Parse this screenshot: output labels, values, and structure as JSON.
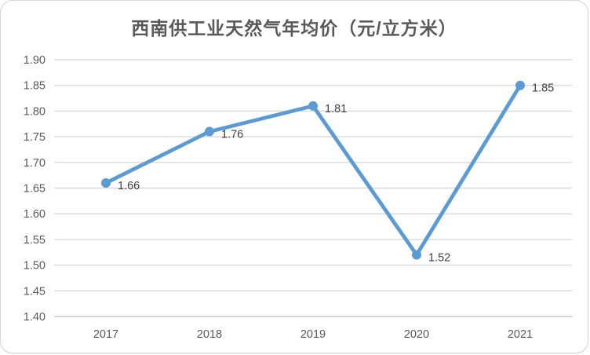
{
  "chart": {
    "title": "西南供工业天然气年均价（元/立方米）",
    "colors": {
      "line": "#5B9BD5",
      "marker": "#5B9BD5",
      "gridline": "#D9D9D9",
      "axis_line": "#C9C9C9",
      "tick_text": "#595959",
      "data_label_text": "#404040",
      "title_text": "#595959",
      "background": "#FFFFFF",
      "frame_border": "#D6D6D6"
    }
  },
  "chart_data": {
    "type": "line",
    "title": "西南供工业天然气年均价（元/立方米）",
    "categories": [
      "2017",
      "2018",
      "2019",
      "2020",
      "2021"
    ],
    "values": [
      1.66,
      1.76,
      1.81,
      1.52,
      1.85
    ],
    "data_labels": [
      "1.66",
      "1.76",
      "1.81",
      "1.52",
      "1.85"
    ],
    "xlabel": "",
    "ylabel": "",
    "ylim": [
      1.4,
      1.9
    ],
    "ytick_step": 0.05,
    "ytick_labels": [
      "1.40",
      "1.45",
      "1.50",
      "1.55",
      "1.60",
      "1.65",
      "1.70",
      "1.75",
      "1.80",
      "1.85",
      "1.90"
    ],
    "grid": "horizontal",
    "legend": "none",
    "marker": "circle"
  }
}
